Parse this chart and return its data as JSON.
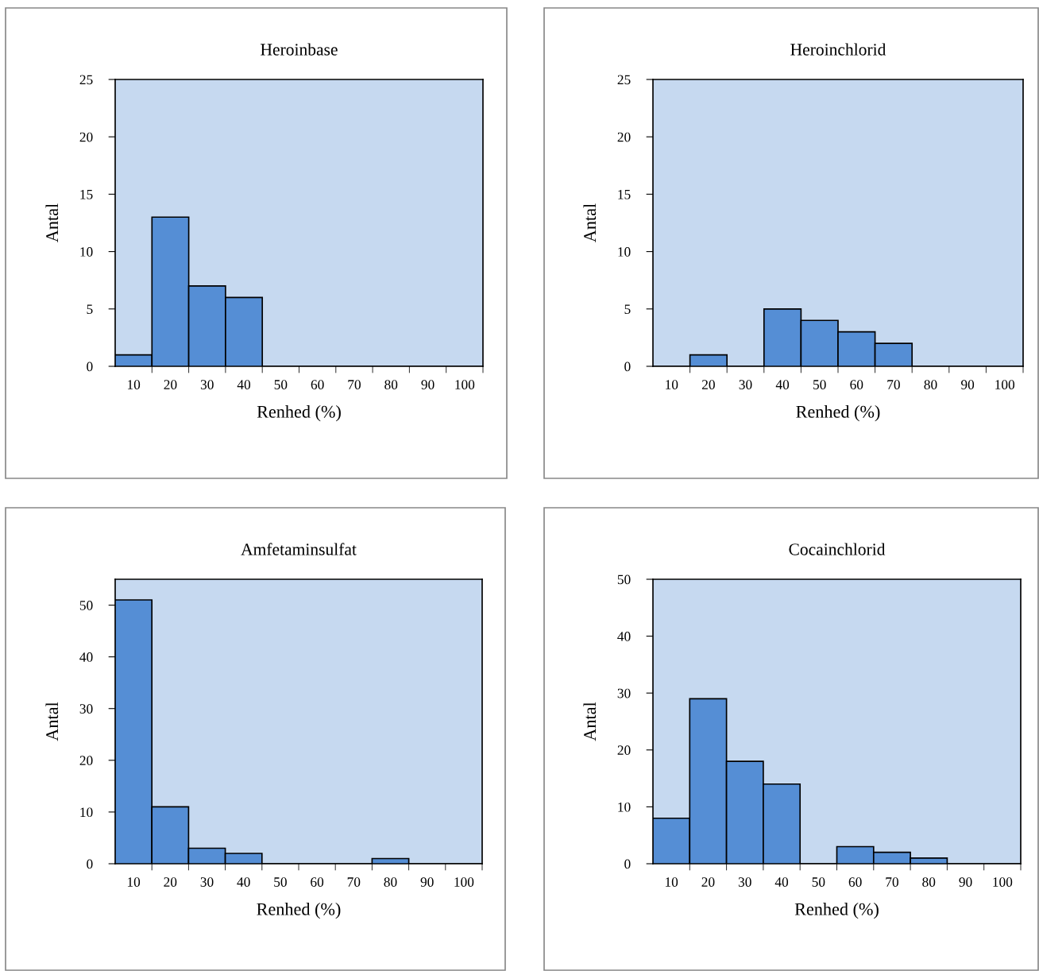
{
  "chart_data": [
    {
      "type": "bar",
      "title": "Heroinbase",
      "xlabel": "Renhed (%)",
      "ylabel": "Antal",
      "categories": [
        "10",
        "20",
        "30",
        "40",
        "50",
        "60",
        "70",
        "80",
        "90",
        "100"
      ],
      "values": [
        1,
        13,
        7,
        6,
        0,
        0,
        0,
        0,
        0,
        0
      ],
      "color": "#558ed5",
      "ylim": [
        0,
        25
      ],
      "yticks": [
        0,
        5,
        10,
        15,
        20,
        25
      ]
    },
    {
      "type": "bar",
      "title": "Heroinchlorid",
      "xlabel": "Renhed (%)",
      "ylabel": "Antal",
      "categories": [
        "10",
        "20",
        "30",
        "40",
        "50",
        "60",
        "70",
        "80",
        "90",
        "100"
      ],
      "values": [
        0,
        1,
        0,
        5,
        4,
        3,
        2,
        0,
        0,
        0
      ],
      "color": "#558ed5",
      "ylim": [
        0,
        25
      ],
      "yticks": [
        0,
        5,
        10,
        15,
        20,
        25
      ]
    },
    {
      "type": "bar",
      "title": "Amfetaminsulfat",
      "xlabel": "Renhed (%)",
      "ylabel": "Antal",
      "categories": [
        "10",
        "20",
        "30",
        "40",
        "50",
        "60",
        "70",
        "80",
        "90",
        "100"
      ],
      "values": [
        51,
        11,
        3,
        2,
        0,
        0,
        0,
        1,
        0,
        0
      ],
      "color": "#558ed5",
      "ylim": [
        0,
        55
      ],
      "yticks": [
        0,
        10,
        20,
        30,
        40,
        50
      ]
    },
    {
      "type": "bar",
      "title": "Cocainchlorid",
      "xlabel": "Renhed (%)",
      "ylabel": "Antal",
      "categories": [
        "10",
        "20",
        "30",
        "40",
        "50",
        "60",
        "70",
        "80",
        "90",
        "100"
      ],
      "values": [
        8,
        29,
        18,
        14,
        0,
        3,
        2,
        1,
        0,
        0
      ],
      "color": "#558ed5",
      "ylim": [
        0,
        50
      ],
      "yticks": [
        0,
        10,
        20,
        30,
        40,
        50
      ]
    }
  ]
}
